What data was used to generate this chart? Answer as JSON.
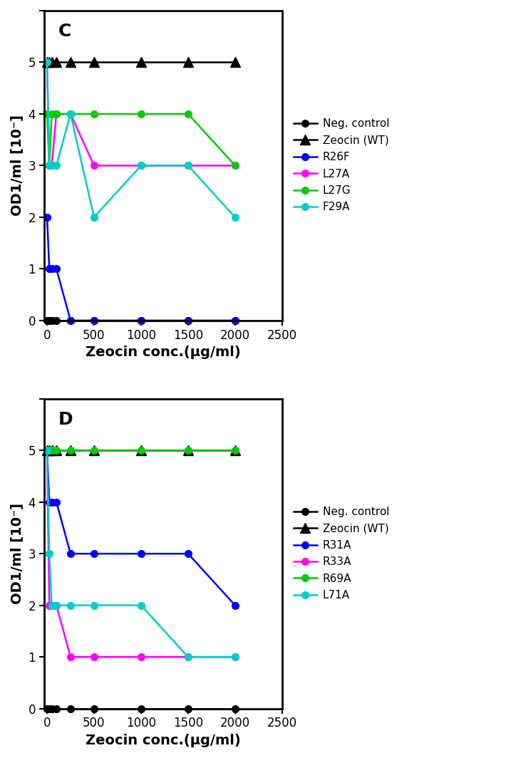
{
  "panel_C": {
    "label": "C",
    "x_values": [
      0,
      25,
      50,
      100,
      250,
      500,
      1000,
      1500,
      2000
    ],
    "series": [
      {
        "name": "Neg. control",
        "color": "#000000",
        "marker": "o",
        "linestyle": "-",
        "markersize": 7,
        "linewidth": 1.8,
        "y": [
          0,
          0,
          0,
          0,
          0,
          0,
          0,
          0,
          0
        ]
      },
      {
        "name": "Zeocin (WT)",
        "color": "#000000",
        "marker": "^",
        "linestyle": "-",
        "markersize": 10,
        "linewidth": 1.8,
        "y": [
          5,
          5,
          5,
          5,
          5,
          5,
          5,
          5,
          5
        ]
      },
      {
        "name": "R26F",
        "color": "#0000FF",
        "marker": "o",
        "linestyle": "-",
        "markersize": 7,
        "linewidth": 1.8,
        "y": [
          2,
          1,
          1,
          1,
          0,
          0,
          0,
          0,
          0
        ]
      },
      {
        "name": "L27A",
        "color": "#FF00FF",
        "marker": "o",
        "linestyle": "-",
        "markersize": 7,
        "linewidth": 1.8,
        "y": [
          5,
          3,
          3,
          4,
          4,
          3,
          3,
          3,
          3
        ]
      },
      {
        "name": "L27G",
        "color": "#00CC00",
        "marker": "o",
        "linestyle": "-",
        "markersize": 7,
        "linewidth": 1.8,
        "y": [
          4,
          3,
          4,
          4,
          4,
          4,
          4,
          4,
          3
        ]
      },
      {
        "name": "F29A",
        "color": "#00CCCC",
        "marker": "o",
        "linestyle": "-",
        "markersize": 7,
        "linewidth": 1.8,
        "y": [
          5,
          3,
          3,
          3,
          4,
          2,
          3,
          3,
          2
        ]
      }
    ],
    "xlabel": "Zeocin conc.(μg/ml)",
    "ylabel": "OD1/ml [10⁻]",
    "ylim": [
      0,
      6
    ],
    "xlim": [
      -30,
      2500
    ],
    "xticks": [
      0,
      500,
      1000,
      1500,
      2000,
      2500
    ],
    "yticks": [
      0,
      1,
      2,
      3,
      4,
      5,
      6
    ]
  },
  "panel_D": {
    "label": "D",
    "x_values": [
      0,
      25,
      50,
      100,
      250,
      500,
      1000,
      1500,
      2000
    ],
    "series": [
      {
        "name": "Neg. control",
        "color": "#000000",
        "marker": "o",
        "linestyle": "-",
        "markersize": 7,
        "linewidth": 1.8,
        "y": [
          0,
          0,
          0,
          0,
          0,
          0,
          0,
          0,
          0
        ]
      },
      {
        "name": "Zeocin (WT)",
        "color": "#000000",
        "marker": "^",
        "linestyle": "-",
        "markersize": 10,
        "linewidth": 1.8,
        "y": [
          5,
          5,
          5,
          5,
          5,
          5,
          5,
          5,
          5
        ]
      },
      {
        "name": "R31A",
        "color": "#0000FF",
        "marker": "o",
        "linestyle": "-",
        "markersize": 7,
        "linewidth": 1.8,
        "y": [
          5,
          4,
          4,
          4,
          3,
          3,
          3,
          3,
          2
        ]
      },
      {
        "name": "R33A",
        "color": "#FF00FF",
        "marker": "o",
        "linestyle": "-",
        "markersize": 7,
        "linewidth": 1.8,
        "y": [
          5,
          2,
          2,
          2,
          1,
          1,
          1,
          1,
          1
        ]
      },
      {
        "name": "R69A",
        "color": "#00CC00",
        "marker": "o",
        "linestyle": "-",
        "markersize": 7,
        "linewidth": 1.8,
        "y": [
          5,
          5,
          5,
          5,
          5,
          5,
          5,
          5,
          5
        ]
      },
      {
        "name": "L71A",
        "color": "#00CCCC",
        "marker": "o",
        "linestyle": "-",
        "markersize": 7,
        "linewidth": 1.8,
        "y": [
          5,
          3,
          2,
          2,
          2,
          2,
          2,
          1,
          1
        ]
      }
    ],
    "xlabel": "Zeocin conc.(μg/ml)",
    "ylabel": "OD1/ml [10⁻]",
    "ylim": [
      0,
      6
    ],
    "xlim": [
      -30,
      2500
    ],
    "xticks": [
      0,
      500,
      1000,
      1500,
      2000,
      2500
    ],
    "yticks": [
      0,
      1,
      2,
      3,
      4,
      5,
      6
    ]
  },
  "figsize": [
    7.1,
    10.64
  ],
  "dpi": 100,
  "legend_fontsize": 11,
  "tick_labelsize": 12,
  "xlabel_fontsize": 14,
  "ylabel_fontsize": 14,
  "panel_label_fontsize": 18,
  "spine_linewidth": 2.0
}
